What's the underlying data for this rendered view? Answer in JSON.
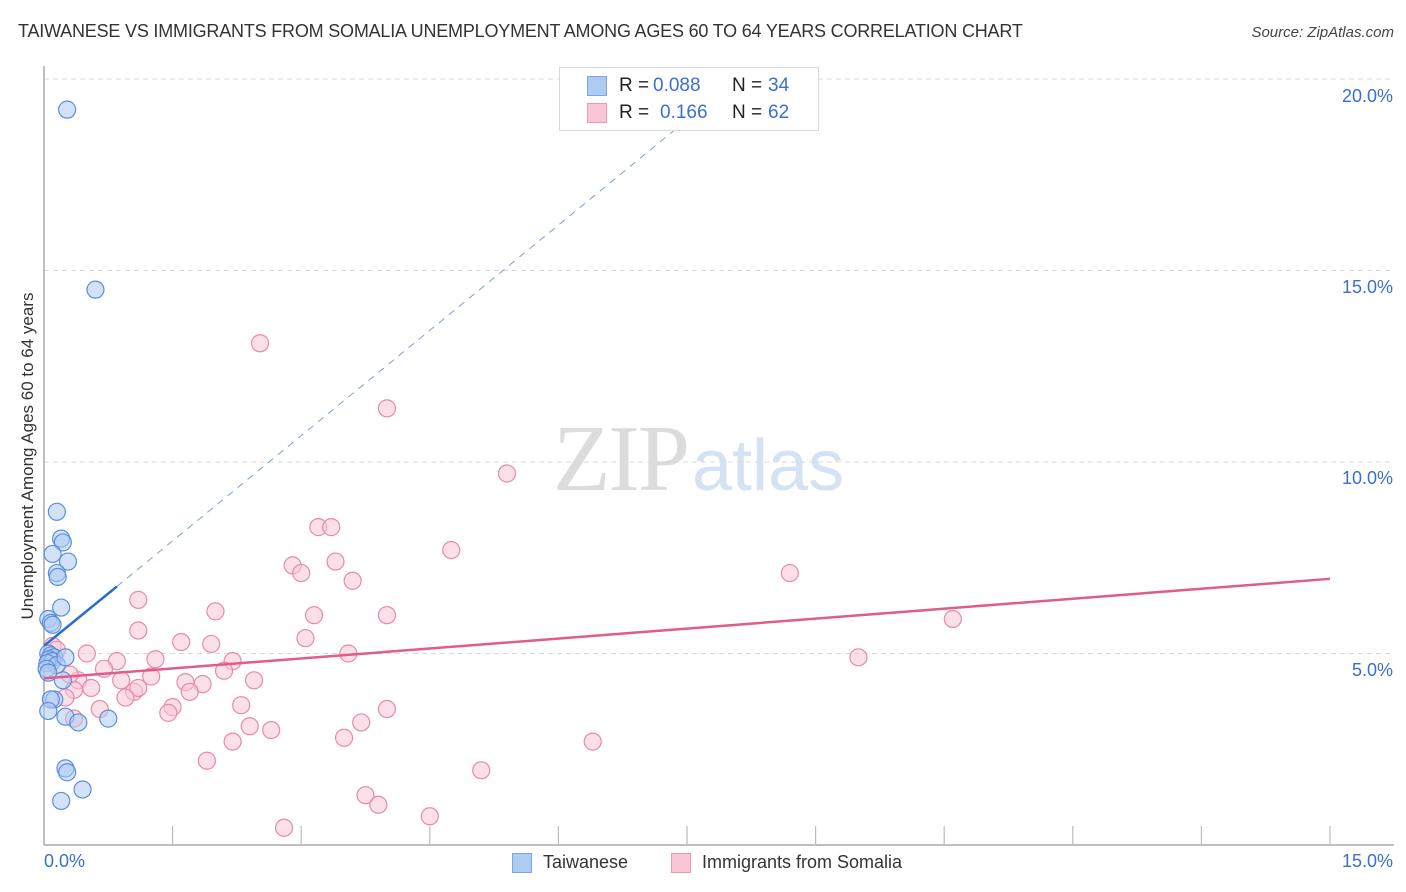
{
  "header": {
    "title": "TAIWANESE VS IMMIGRANTS FROM SOMALIA UNEMPLOYMENT AMONG AGES 60 TO 64 YEARS CORRELATION CHART",
    "source": "Source: ZipAtlas.com"
  },
  "legend_top": {
    "rows": [
      {
        "r_label": "R =",
        "r_value": "0.088",
        "n_label": "N =",
        "n_value": "34",
        "color": "#aecbf2",
        "border": "#7aa6e3"
      },
      {
        "r_label": "R =",
        "r_value": "0.166",
        "n_label": "N =",
        "n_value": "62",
        "color": "#f9c6d5",
        "border": "#ee98b2"
      }
    ]
  },
  "legend_bottom": {
    "items": [
      {
        "label": "Taiwanese",
        "color": "#aecbf2",
        "border": "#7aa6e3"
      },
      {
        "label": "Immigrants from Somalia",
        "color": "#f9c6d5",
        "border": "#ee98b2"
      }
    ]
  },
  "axes": {
    "ylabel": "Unemployment Among Ages 60 to 64 years",
    "yticks": [
      "20.0%",
      "15.0%",
      "10.0%",
      "5.0%"
    ],
    "xtick_left": "0.0%",
    "xtick_right": "15.0%"
  },
  "watermark": {
    "zip": "ZIP",
    "atlas": "atlas"
  },
  "colors": {
    "blue_fill": "#aecbf2",
    "blue_stroke": "#5b8fdc",
    "blue_line": "#2a6dd1",
    "pink_fill": "#f9c6d5",
    "pink_stroke": "#e88aa8",
    "pink_line": "#e05c8a",
    "tick_label": "#3a6fcf",
    "grid": "#d9d9d9"
  },
  "chart_data": {
    "type": "scatter",
    "title": "TAIWANESE VS IMMIGRANTS FROM SOMALIA UNEMPLOYMENT AMONG AGES 60 TO 64 YEARS CORRELATION CHART",
    "xlabel": "",
    "ylabel": "Unemployment Among Ages 60 to 64 years",
    "xlim": [
      0,
      15
    ],
    "ylim": [
      0,
      20.5
    ],
    "x_ticks": [
      "0.0%",
      "15.0%"
    ],
    "y_ticks": [
      "5.0%",
      "10.0%",
      "15.0%",
      "20.0%"
    ],
    "grid": "horizontal dashed",
    "legend_position": "top-center and bottom",
    "series": [
      {
        "name": "Taiwanese",
        "R": 0.088,
        "N": 34,
        "trend": {
          "x": [
            0.0,
            0.85
          ],
          "y": [
            5.2,
            6.75
          ],
          "extended_dashed_to": [
            7.4,
            18.75
          ]
        },
        "points": [
          [
            0.27,
            19.2
          ],
          [
            0.6,
            14.5
          ],
          [
            0.15,
            8.7
          ],
          [
            0.2,
            8.0
          ],
          [
            0.22,
            7.9
          ],
          [
            0.1,
            7.6
          ],
          [
            0.28,
            7.4
          ],
          [
            0.15,
            7.1
          ],
          [
            0.16,
            7.0
          ],
          [
            0.2,
            6.2
          ],
          [
            0.05,
            5.9
          ],
          [
            0.08,
            5.8
          ],
          [
            0.1,
            5.75
          ],
          [
            0.05,
            5.0
          ],
          [
            0.08,
            4.95
          ],
          [
            0.12,
            4.9
          ],
          [
            0.06,
            4.85
          ],
          [
            0.1,
            4.8
          ],
          [
            0.04,
            4.75
          ],
          [
            0.15,
            4.7
          ],
          [
            0.25,
            4.9
          ],
          [
            0.03,
            4.6
          ],
          [
            0.05,
            4.5
          ],
          [
            0.22,
            4.3
          ],
          [
            0.12,
            3.8
          ],
          [
            0.08,
            3.8
          ],
          [
            0.05,
            3.5
          ],
          [
            0.25,
            3.35
          ],
          [
            0.4,
            3.2
          ],
          [
            0.75,
            3.3
          ],
          [
            0.25,
            2.0
          ],
          [
            0.27,
            1.9
          ],
          [
            0.45,
            1.45
          ],
          [
            0.2,
            1.15
          ]
        ]
      },
      {
        "name": "Immigrants from Somalia",
        "R": 0.166,
        "N": 62,
        "trend": {
          "x": [
            0.0,
            15.0
          ],
          "y": [
            4.35,
            6.95
          ]
        },
        "points": [
          [
            2.52,
            13.1
          ],
          [
            4.0,
            11.4
          ],
          [
            5.4,
            9.7
          ],
          [
            3.2,
            8.3
          ],
          [
            3.35,
            8.3
          ],
          [
            4.75,
            7.7
          ],
          [
            3.4,
            7.4
          ],
          [
            2.9,
            7.3
          ],
          [
            3.0,
            7.1
          ],
          [
            3.6,
            6.9
          ],
          [
            8.7,
            7.1
          ],
          [
            1.1,
            6.4
          ],
          [
            2.0,
            6.1
          ],
          [
            3.15,
            6.0
          ],
          [
            4.0,
            6.0
          ],
          [
            10.6,
            5.9
          ],
          [
            1.1,
            5.6
          ],
          [
            3.05,
            5.4
          ],
          [
            1.6,
            5.3
          ],
          [
            1.95,
            5.25
          ],
          [
            0.5,
            5.0
          ],
          [
            3.55,
            5.0
          ],
          [
            9.5,
            4.9
          ],
          [
            1.3,
            4.85
          ],
          [
            2.2,
            4.8
          ],
          [
            0.85,
            4.8
          ],
          [
            0.7,
            4.6
          ],
          [
            2.1,
            4.55
          ],
          [
            1.25,
            4.4
          ],
          [
            0.9,
            4.3
          ],
          [
            2.45,
            4.3
          ],
          [
            0.4,
            4.3
          ],
          [
            1.65,
            4.25
          ],
          [
            1.85,
            4.2
          ],
          [
            0.55,
            4.1
          ],
          [
            0.35,
            4.05
          ],
          [
            1.05,
            4.0
          ],
          [
            1.1,
            4.1
          ],
          [
            1.7,
            4.0
          ],
          [
            0.95,
            3.85
          ],
          [
            0.25,
            3.85
          ],
          [
            1.5,
            3.6
          ],
          [
            0.65,
            3.55
          ],
          [
            2.3,
            3.65
          ],
          [
            1.45,
            3.45
          ],
          [
            4.0,
            3.55
          ],
          [
            0.35,
            3.3
          ],
          [
            3.7,
            3.2
          ],
          [
            2.4,
            3.1
          ],
          [
            3.5,
            2.8
          ],
          [
            2.65,
            3.0
          ],
          [
            2.2,
            2.7
          ],
          [
            6.4,
            2.7
          ],
          [
            1.9,
            2.2
          ],
          [
            5.1,
            1.95
          ],
          [
            3.75,
            1.3
          ],
          [
            3.9,
            1.05
          ],
          [
            4.5,
            0.75
          ],
          [
            2.8,
            0.45
          ],
          [
            0.1,
            5.2
          ],
          [
            0.15,
            5.1
          ],
          [
            0.3,
            4.45
          ]
        ]
      }
    ]
  }
}
